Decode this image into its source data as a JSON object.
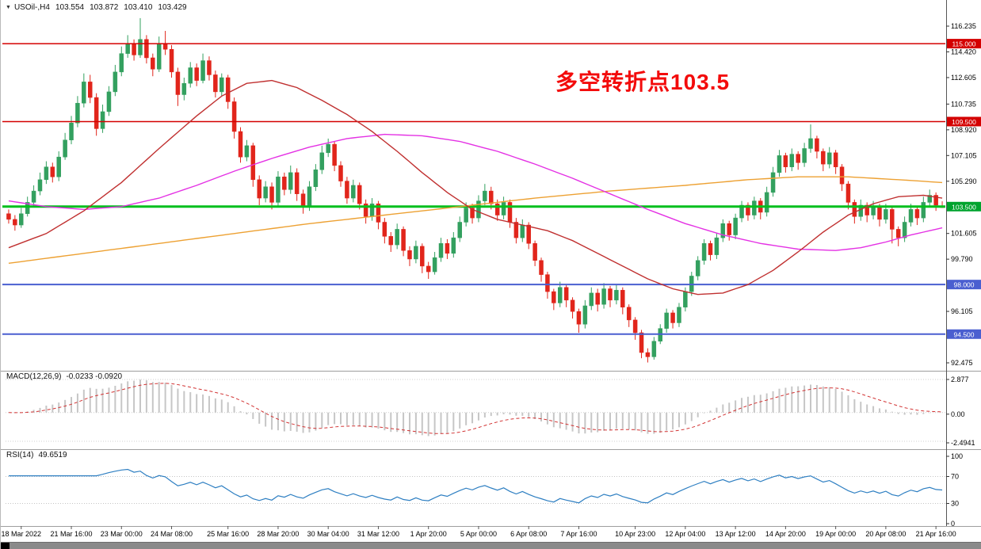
{
  "header": {
    "symbol_period": "USOil-,H4",
    "open": "103.554",
    "high": "103.872",
    "low": "103.410",
    "close": "103.429"
  },
  "annotation": {
    "text": "多空转折点103.5",
    "color": "#f30b0b"
  },
  "colors": {
    "bull": "#33a05f",
    "bear": "#e1251b",
    "ma_fast": "#c03030",
    "ma_mid": "#e431e4",
    "ma_slow": "#eda133",
    "macd_hist": "#c6c6c6",
    "macd_signal": "#d23333",
    "rsi_line": "#2e7fc2",
    "axis_line": "#555555",
    "separator": "#9e9e9e"
  },
  "chart_data": {
    "type": "candlestick",
    "symbol": "USOil-",
    "timeframe": "H4",
    "title": "USOil-,H4 103.554 103.872 103.410 103.429",
    "y_axis": {
      "ticks": [
        116.235,
        114.42,
        112.605,
        110.735,
        108.92,
        107.105,
        105.29,
        101.605,
        99.79,
        96.105,
        92.475
      ]
    },
    "x_labels": [
      "18 Mar 2022",
      "21 Mar 16:00",
      "23 Mar 00:00",
      "24 Mar 08:00",
      "25 Mar 16:00",
      "28 Mar 20:00",
      "30 Mar 04:00",
      "31 Mar 12:00",
      "1 Apr 20:00",
      "5 Apr 00:00",
      "6 Apr 08:00",
      "7 Apr 16:00",
      "10 Apr 23:00",
      "12 Apr 04:00",
      "13 Apr 12:00",
      "14 Apr 20:00",
      "19 Apr 00:00",
      "20 Apr 08:00",
      "21 Apr 16:00"
    ],
    "x_label_indices": [
      2,
      10,
      18,
      26,
      35,
      43,
      51,
      59,
      67,
      75,
      83,
      91,
      100,
      108,
      116,
      124,
      132,
      140,
      148
    ],
    "hlines": [
      {
        "value": 115.0,
        "label": "115.000",
        "color": "#d40000",
        "badge": "#d40000",
        "width": 1.5
      },
      {
        "value": 109.5,
        "label": "109.500",
        "color": "#d40000",
        "badge": "#d40000",
        "width": 1.5
      },
      {
        "value": 103.5,
        "label": "103.500",
        "color": "#00bf1d",
        "badge": "#00a32e",
        "width": 3
      },
      {
        "value": 98.0,
        "label": "98.000",
        "color": "#4a5fd0",
        "badge": "#4a5fd0",
        "width": 2
      },
      {
        "value": 94.5,
        "label": "94.500",
        "color": "#4a5fd0",
        "badge": "#4a5fd0",
        "width": 2
      }
    ],
    "moving_averages": [
      {
        "name": "ma-slow-orange",
        "color": "#eda133",
        "points": [
          [
            0,
            99.5
          ],
          [
            12,
            100.2
          ],
          [
            24,
            100.9
          ],
          [
            36,
            101.6
          ],
          [
            48,
            102.3
          ],
          [
            60,
            102.9
          ],
          [
            72,
            103.5
          ],
          [
            84,
            104.1
          ],
          [
            96,
            104.6
          ],
          [
            108,
            105.0
          ],
          [
            118,
            105.4
          ],
          [
            126,
            105.6
          ],
          [
            134,
            105.6
          ],
          [
            142,
            105.4
          ],
          [
            149,
            105.2
          ]
        ]
      },
      {
        "name": "ma-mid-magenta",
        "color": "#e431e4",
        "points": [
          [
            0,
            103.9
          ],
          [
            6,
            103.5
          ],
          [
            12,
            103.3
          ],
          [
            18,
            103.5
          ],
          [
            24,
            104.1
          ],
          [
            30,
            105.0
          ],
          [
            36,
            106.0
          ],
          [
            42,
            106.9
          ],
          [
            48,
            107.7
          ],
          [
            54,
            108.3
          ],
          [
            60,
            108.6
          ],
          [
            66,
            108.5
          ],
          [
            72,
            108.1
          ],
          [
            78,
            107.4
          ],
          [
            84,
            106.5
          ],
          [
            90,
            105.5
          ],
          [
            96,
            104.4
          ],
          [
            102,
            103.3
          ],
          [
            108,
            102.3
          ],
          [
            114,
            101.5
          ],
          [
            120,
            100.9
          ],
          [
            126,
            100.5
          ],
          [
            132,
            100.4
          ],
          [
            136,
            100.6
          ],
          [
            140,
            101.0
          ],
          [
            144,
            101.5
          ],
          [
            149,
            102.0
          ]
        ]
      },
      {
        "name": "ma-fast-crimson",
        "color": "#c03030",
        "points": [
          [
            0,
            100.6
          ],
          [
            6,
            101.6
          ],
          [
            12,
            103.2
          ],
          [
            18,
            105.2
          ],
          [
            24,
            107.6
          ],
          [
            30,
            109.9
          ],
          [
            34,
            111.3
          ],
          [
            38,
            112.2
          ],
          [
            42,
            112.4
          ],
          [
            46,
            111.9
          ],
          [
            50,
            111.0
          ],
          [
            54,
            110.0
          ],
          [
            58,
            108.8
          ],
          [
            62,
            107.4
          ],
          [
            66,
            105.9
          ],
          [
            70,
            104.5
          ],
          [
            74,
            103.3
          ],
          [
            78,
            102.6
          ],
          [
            82,
            102.2
          ],
          [
            86,
            101.8
          ],
          [
            90,
            101.1
          ],
          [
            94,
            100.2
          ],
          [
            98,
            99.3
          ],
          [
            102,
            98.4
          ],
          [
            106,
            97.7
          ],
          [
            110,
            97.3
          ],
          [
            114,
            97.4
          ],
          [
            118,
            98.0
          ],
          [
            122,
            99.0
          ],
          [
            126,
            100.3
          ],
          [
            130,
            101.7
          ],
          [
            134,
            102.9
          ],
          [
            138,
            103.7
          ],
          [
            142,
            104.2
          ],
          [
            146,
            104.3
          ],
          [
            149,
            104.1
          ]
        ]
      }
    ],
    "indicators": {
      "macd": {
        "label": "MACD(12,26,9)",
        "values_text": "-0.0233 -0.0920",
        "fast": 12,
        "slow": 26,
        "signal": 9,
        "scale_max": 2.877,
        "scale_min": -2.4941,
        "axis_labels": [
          "2.877",
          "0.00",
          "-2.4941"
        ]
      },
      "rsi": {
        "label": "RSI(14)",
        "value_text": "49.6519",
        "period": 14,
        "levels": [
          100,
          70,
          30,
          0
        ]
      }
    },
    "candles": [
      [
        103.0,
        103.3,
        102.3,
        102.6
      ],
      [
        102.6,
        102.9,
        101.8,
        102.2
      ],
      [
        102.2,
        103.4,
        102.0,
        103.0
      ],
      [
        103.0,
        104.2,
        102.8,
        103.8
      ],
      [
        103.8,
        105.0,
        103.5,
        104.6
      ],
      [
        104.6,
        105.9,
        104.3,
        105.4
      ],
      [
        105.4,
        106.7,
        105.1,
        106.3
      ],
      [
        106.3,
        106.6,
        105.2,
        105.6
      ],
      [
        105.6,
        107.4,
        105.3,
        107.0
      ],
      [
        107.0,
        108.7,
        106.8,
        108.2
      ],
      [
        108.2,
        109.9,
        107.9,
        109.4
      ],
      [
        109.4,
        111.3,
        109.1,
        110.8
      ],
      [
        110.8,
        112.9,
        110.5,
        112.3
      ],
      [
        112.3,
        112.8,
        110.8,
        111.2
      ],
      [
        111.2,
        111.5,
        108.5,
        109.0
      ],
      [
        109.0,
        110.7,
        108.7,
        110.2
      ],
      [
        110.2,
        112.0,
        109.9,
        111.6
      ],
      [
        111.6,
        113.5,
        111.3,
        113.0
      ],
      [
        113.0,
        114.8,
        112.7,
        114.3
      ],
      [
        114.3,
        115.6,
        114.0,
        115.0
      ],
      [
        115.0,
        115.3,
        113.8,
        114.2
      ],
      [
        114.2,
        116.8,
        114.0,
        115.3
      ],
      [
        115.3,
        115.6,
        113.6,
        114.0
      ],
      [
        114.0,
        114.3,
        112.7,
        113.2
      ],
      [
        113.2,
        115.5,
        113.0,
        115.0
      ],
      [
        115.0,
        115.9,
        114.2,
        114.6
      ],
      [
        114.6,
        114.9,
        112.6,
        113.0
      ],
      [
        113.0,
        113.3,
        110.6,
        111.4
      ],
      [
        111.4,
        112.6,
        111.0,
        112.2
      ],
      [
        112.2,
        113.7,
        111.9,
        113.3
      ],
      [
        113.3,
        113.6,
        112.0,
        112.4
      ],
      [
        112.4,
        114.3,
        112.2,
        113.8
      ],
      [
        113.8,
        114.1,
        112.4,
        112.8
      ],
      [
        112.8,
        113.1,
        111.2,
        111.6
      ],
      [
        111.6,
        112.9,
        111.3,
        112.6
      ],
      [
        112.6,
        112.8,
        110.4,
        110.9
      ],
      [
        110.9,
        111.2,
        108.3,
        108.8
      ],
      [
        108.8,
        109.1,
        106.6,
        107.0
      ],
      [
        107.0,
        108.2,
        106.7,
        107.8
      ],
      [
        107.8,
        108.0,
        104.9,
        105.4
      ],
      [
        105.4,
        105.7,
        103.6,
        104.1
      ],
      [
        104.1,
        105.3,
        103.8,
        104.9
      ],
      [
        104.9,
        105.2,
        103.3,
        103.8
      ],
      [
        103.8,
        106.0,
        103.5,
        105.6
      ],
      [
        105.6,
        105.9,
        104.3,
        104.7
      ],
      [
        104.7,
        106.4,
        104.4,
        105.9
      ],
      [
        105.9,
        106.2,
        103.9,
        104.4
      ],
      [
        104.4,
        104.7,
        103.0,
        103.5
      ],
      [
        103.5,
        105.3,
        103.2,
        104.9
      ],
      [
        104.9,
        106.5,
        104.6,
        106.1
      ],
      [
        106.1,
        107.8,
        105.8,
        107.3
      ],
      [
        107.3,
        108.3,
        107.0,
        107.9
      ],
      [
        107.9,
        108.1,
        106.0,
        106.4
      ],
      [
        106.4,
        106.7,
        104.9,
        105.3
      ],
      [
        105.3,
        105.6,
        103.7,
        104.1
      ],
      [
        104.1,
        105.4,
        103.8,
        105.0
      ],
      [
        105.0,
        105.2,
        103.3,
        103.7
      ],
      [
        103.7,
        104.0,
        102.3,
        102.8
      ],
      [
        102.8,
        104.1,
        102.5,
        103.7
      ],
      [
        103.7,
        103.9,
        101.9,
        102.4
      ],
      [
        102.4,
        102.7,
        100.9,
        101.4
      ],
      [
        101.4,
        101.7,
        100.3,
        100.8
      ],
      [
        100.8,
        102.3,
        100.5,
        101.9
      ],
      [
        101.9,
        102.1,
        100.0,
        100.4
      ],
      [
        100.4,
        100.7,
        99.3,
        99.8
      ],
      [
        99.8,
        101.1,
        99.5,
        100.7
      ],
      [
        100.7,
        100.9,
        98.8,
        99.3
      ],
      [
        99.3,
        99.6,
        98.4,
        98.9
      ],
      [
        98.9,
        100.3,
        98.7,
        99.9
      ],
      [
        99.9,
        101.3,
        99.6,
        100.9
      ],
      [
        100.9,
        101.2,
        99.8,
        100.2
      ],
      [
        100.2,
        101.7,
        99.9,
        101.3
      ],
      [
        101.3,
        102.8,
        101.0,
        102.4
      ],
      [
        102.4,
        103.8,
        102.1,
        103.4
      ],
      [
        103.4,
        103.7,
        102.3,
        102.7
      ],
      [
        102.7,
        104.3,
        102.4,
        103.9
      ],
      [
        103.9,
        105.1,
        103.6,
        104.6
      ],
      [
        104.6,
        104.9,
        103.3,
        103.7
      ],
      [
        103.7,
        104.0,
        102.5,
        102.9
      ],
      [
        102.9,
        104.2,
        102.6,
        103.8
      ],
      [
        103.8,
        104.0,
        102.0,
        102.4
      ],
      [
        102.4,
        102.7,
        100.9,
        101.3
      ],
      [
        101.3,
        102.6,
        101.0,
        102.2
      ],
      [
        102.2,
        102.4,
        100.5,
        100.9
      ],
      [
        100.9,
        101.1,
        99.3,
        99.7
      ],
      [
        99.7,
        99.9,
        98.2,
        98.7
      ],
      [
        98.7,
        98.9,
        97.0,
        97.5
      ],
      [
        97.5,
        97.7,
        96.2,
        96.7
      ],
      [
        96.7,
        98.2,
        96.4,
        97.8
      ],
      [
        97.8,
        98.0,
        96.4,
        96.9
      ],
      [
        96.9,
        97.1,
        95.6,
        96.1
      ],
      [
        96.1,
        96.3,
        94.6,
        95.2
      ],
      [
        95.2,
        96.9,
        94.9,
        96.5
      ],
      [
        96.5,
        97.8,
        96.2,
        97.4
      ],
      [
        97.4,
        97.7,
        96.1,
        96.6
      ],
      [
        96.6,
        98.1,
        96.3,
        97.7
      ],
      [
        97.7,
        97.9,
        96.4,
        96.9
      ],
      [
        96.9,
        98.0,
        96.6,
        97.6
      ],
      [
        97.6,
        97.8,
        95.9,
        96.4
      ],
      [
        96.4,
        96.6,
        95.0,
        95.5
      ],
      [
        95.5,
        95.7,
        94.1,
        94.6
      ],
      [
        94.6,
        94.8,
        92.8,
        93.2
      ],
      [
        93.2,
        93.5,
        92.5,
        92.9
      ],
      [
        92.9,
        94.3,
        92.7,
        94.0
      ],
      [
        94.0,
        95.2,
        93.8,
        94.9
      ],
      [
        94.9,
        96.3,
        94.6,
        96.0
      ],
      [
        96.0,
        96.2,
        94.9,
        95.3
      ],
      [
        95.3,
        96.7,
        95.0,
        96.4
      ],
      [
        96.4,
        97.8,
        96.1,
        97.5
      ],
      [
        97.5,
        98.9,
        97.2,
        98.6
      ],
      [
        98.6,
        100.0,
        98.3,
        99.7
      ],
      [
        99.7,
        101.2,
        99.4,
        100.9
      ],
      [
        100.9,
        101.1,
        99.7,
        100.1
      ],
      [
        100.1,
        101.6,
        99.8,
        101.3
      ],
      [
        101.3,
        102.6,
        101.0,
        102.3
      ],
      [
        102.3,
        102.5,
        101.1,
        101.5
      ],
      [
        101.5,
        103.0,
        101.2,
        102.7
      ],
      [
        102.7,
        103.9,
        102.4,
        103.6
      ],
      [
        103.6,
        103.8,
        102.5,
        102.9
      ],
      [
        102.9,
        104.2,
        102.6,
        103.9
      ],
      [
        103.9,
        104.1,
        102.6,
        103.1
      ],
      [
        103.1,
        104.9,
        102.8,
        104.5
      ],
      [
        104.5,
        106.3,
        104.2,
        105.9
      ],
      [
        105.9,
        107.5,
        105.6,
        107.1
      ],
      [
        107.1,
        107.3,
        105.9,
        106.3
      ],
      [
        106.3,
        107.6,
        106.0,
        107.2
      ],
      [
        107.2,
        107.4,
        106.1,
        106.6
      ],
      [
        106.6,
        108.0,
        106.3,
        107.6
      ],
      [
        107.6,
        109.3,
        107.3,
        108.3
      ],
      [
        108.3,
        108.5,
        106.9,
        107.4
      ],
      [
        107.4,
        107.6,
        106.0,
        106.5
      ],
      [
        106.5,
        107.7,
        106.2,
        107.3
      ],
      [
        107.3,
        107.5,
        105.8,
        106.3
      ],
      [
        106.3,
        106.5,
        104.6,
        105.1
      ],
      [
        105.1,
        105.3,
        103.3,
        103.8
      ],
      [
        103.8,
        104.0,
        102.3,
        102.8
      ],
      [
        102.8,
        104.0,
        102.5,
        103.6
      ],
      [
        103.6,
        103.8,
        102.4,
        102.9
      ],
      [
        102.9,
        103.9,
        102.6,
        103.5
      ],
      [
        103.5,
        103.7,
        102.1,
        102.6
      ],
      [
        102.6,
        103.7,
        102.3,
        103.3
      ],
      [
        103.3,
        103.5,
        100.9,
        101.9
      ],
      [
        101.9,
        102.1,
        100.7,
        101.3
      ],
      [
        101.3,
        102.8,
        101.0,
        102.4
      ],
      [
        102.4,
        103.7,
        102.1,
        103.3
      ],
      [
        103.3,
        103.5,
        102.2,
        102.7
      ],
      [
        102.7,
        104.2,
        102.4,
        103.8
      ],
      [
        103.8,
        104.7,
        103.5,
        104.3
      ],
      [
        104.3,
        104.5,
        103.2,
        103.6
      ],
      [
        103.554,
        103.872,
        103.41,
        103.429
      ]
    ]
  }
}
